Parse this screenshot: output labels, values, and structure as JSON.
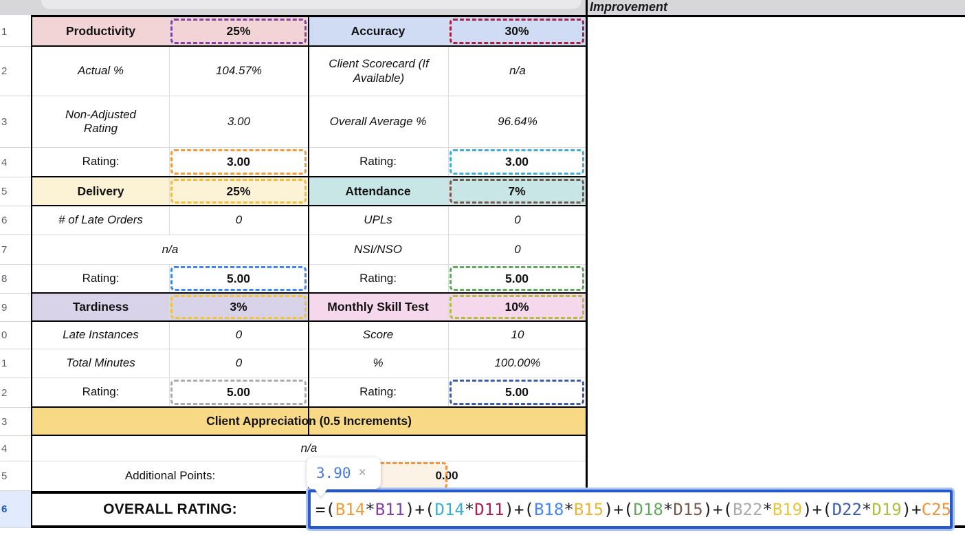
{
  "topbar": {
    "improvement": "Improvement"
  },
  "gutter": {
    "rows": [
      {
        "n": "1"
      },
      {
        "n": "2"
      },
      {
        "n": "3"
      },
      {
        "n": "4"
      },
      {
        "n": "5"
      },
      {
        "n": "6"
      },
      {
        "n": "7"
      },
      {
        "n": "8"
      },
      {
        "n": "9"
      },
      {
        "n": "0"
      },
      {
        "n": "1"
      },
      {
        "n": "2"
      },
      {
        "n": "3"
      },
      {
        "n": "4"
      },
      {
        "n": "5"
      },
      {
        "n": "6",
        "selected": true
      }
    ]
  },
  "cells": {
    "a11": "Productivity",
    "b11": "25%",
    "c11": "Accuracy",
    "d11": "30%",
    "a12": "Actual %",
    "b12": "104.57%",
    "c12": "Client Scorecard (If Available)",
    "d12": "n/a",
    "a13": "Non-Adjusted Rating",
    "b13": "3.00",
    "c13": "Overall Average %",
    "d13": "96.64%",
    "a14": "Rating:",
    "b14": "3.00",
    "c14": "Rating:",
    "d14": "3.00",
    "a15": "Delivery",
    "b15": "25%",
    "c15": "Attendance",
    "d15": "7%",
    "a16": "# of Late Orders",
    "b16": "0",
    "c16": "UPLs",
    "d16": "0",
    "ab17": "n/a",
    "c17": "NSI/NSO",
    "d17": "0",
    "a18": "Rating:",
    "b18": "5.00",
    "c18": "Rating:",
    "d18": "5.00",
    "a19": "Tardiness",
    "b19": "3%",
    "c19": "Monthly Skill Test",
    "d19": "10%",
    "a20": "Late Instances",
    "b20": "0",
    "c20": "Score",
    "d20": "10",
    "a21": "Total Minutes",
    "b21": "0",
    "c21": "%",
    "d21": "100.00%",
    "a22": "Rating:",
    "b22": "5.00",
    "c22": "Rating:",
    "d22": "5.00",
    "abcd23": "Client Appreciation (0.5 Increments)",
    "abcd24": "n/a",
    "ab25": "Additional Points:",
    "cd25": "0.00",
    "ab26": "OVERALL RATING:"
  },
  "section_colors": {
    "productivity": "#F2D3D6",
    "accuracy": "#CFDCF3",
    "delivery": "#FCF2D5",
    "attendance": "#C9E6E7",
    "tardiness": "#D9D3EA",
    "monthly_skill_test": "#F6D8ED",
    "client_appreciation": "#F8D986",
    "c25_fill": "#FDF2E6"
  },
  "highlights": {
    "B11": "#8441A4",
    "D11": "#A82049",
    "B14": "#F09C3D",
    "D14": "#41AECF",
    "B15": "#EFBE3E",
    "D15": "#75584D",
    "B18": "#4285F4",
    "D18": "#61A75F",
    "B19": "#EFC43D",
    "D19": "#AFBE3E",
    "B22": "#ACACAC",
    "D22": "#3D5BA8",
    "C25": "#F09544"
  },
  "formula": {
    "editor_border": "#2757CB",
    "tokens": [
      {
        "text": "=(",
        "color": "#1D1D1F"
      },
      {
        "text": "B14",
        "color": "#EE9C3B"
      },
      {
        "text": "*",
        "color": "#1D1D1F"
      },
      {
        "text": "B11",
        "color": "#8441A4"
      },
      {
        "text": ")+(",
        "color": "#1D1D1F"
      },
      {
        "text": "D14",
        "color": "#3EAECF"
      },
      {
        "text": "*",
        "color": "#1D1D1F"
      },
      {
        "text": "D11",
        "color": "#A82049"
      },
      {
        "text": ")+(",
        "color": "#1D1D1F"
      },
      {
        "text": "B18",
        "color": "#4486F6"
      },
      {
        "text": "*",
        "color": "#1D1D1F"
      },
      {
        "text": "B15",
        "color": "#E9B63D"
      },
      {
        "text": ")+(",
        "color": "#1D1D1F"
      },
      {
        "text": "D18",
        "color": "#63A85F"
      },
      {
        "text": "*",
        "color": "#1D1D1F"
      },
      {
        "text": "D15",
        "color": "#76594D"
      },
      {
        "text": ")+(",
        "color": "#1D1D1F"
      },
      {
        "text": "B22",
        "color": "#A9A9A9"
      },
      {
        "text": "*",
        "color": "#1D1D1F"
      },
      {
        "text": "B19",
        "color": "#E9C43F"
      },
      {
        "text": ")+(",
        "color": "#1D1D1F"
      },
      {
        "text": "D22",
        "color": "#3D5CAB"
      },
      {
        "text": "*",
        "color": "#1D1D1F"
      },
      {
        "text": "D19",
        "color": "#AFBE40"
      },
      {
        "text": ")+",
        "color": "#1D1D1F"
      },
      {
        "text": "C25",
        "color": "#EE9439"
      }
    ]
  },
  "tooltip": {
    "value": "3.90",
    "value_color": "#4878DB",
    "close_label": "×"
  }
}
